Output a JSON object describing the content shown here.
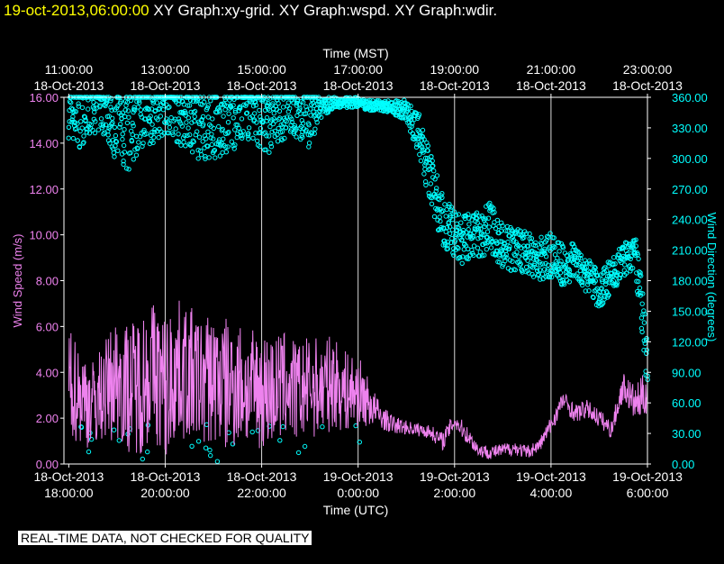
{
  "header": {
    "date": "19-oct-2013,06:00:00",
    "graphs": "XY Graph:xy-grid.  XY Graph:wspd.  XY Graph:wdir."
  },
  "notice": "REAL-TIME DATA, NOT CHECKED FOR QUALITY",
  "colors": {
    "speed": "#ee82ee",
    "direction": "#00ffff",
    "axes": "#ffffff",
    "date": "#ffff00"
  },
  "chart_data": {
    "type": "scatter",
    "top_axis": {
      "label": "Time (MST)",
      "ticks": [
        {
          "hour": 18,
          "time": "11:00:00",
          "date": "18-Oct-2013"
        },
        {
          "hour": 20,
          "time": "13:00:00",
          "date": "18-Oct-2013"
        },
        {
          "hour": 22,
          "time": "15:00:00",
          "date": "18-Oct-2013"
        },
        {
          "hour": 24,
          "time": "17:00:00",
          "date": "18-Oct-2013"
        },
        {
          "hour": 26,
          "time": "19:00:00",
          "date": "18-Oct-2013"
        },
        {
          "hour": 28,
          "time": "21:00:00",
          "date": "18-Oct-2013"
        },
        {
          "hour": 30,
          "time": "23:00:00",
          "date": "18-Oct-2013"
        }
      ]
    },
    "bottom_axis": {
      "label": "Time (UTC)",
      "ticks": [
        {
          "hour": 18,
          "date": "18-Oct-2013",
          "time": "18:00:00"
        },
        {
          "hour": 20,
          "date": "18-Oct-2013",
          "time": "20:00:00"
        },
        {
          "hour": 22,
          "date": "18-Oct-2013",
          "time": "22:00:00"
        },
        {
          "hour": 24,
          "date": "19-Oct-2013",
          "time": "0:00:00"
        },
        {
          "hour": 26,
          "date": "19-Oct-2013",
          "time": "2:00:00"
        },
        {
          "hour": 28,
          "date": "19-Oct-2013",
          "time": "4:00:00"
        },
        {
          "hour": 30,
          "date": "19-Oct-2013",
          "time": "6:00:00"
        }
      ]
    },
    "xlim": [
      17.9,
      30.0
    ],
    "left_axis": {
      "label": "Wind Speed (m/s)",
      "ylim": [
        0,
        16
      ],
      "ticks": [
        "0.00",
        "2.00",
        "4.00",
        "6.00",
        "8.00",
        "10.00",
        "12.00",
        "14.00",
        "16.00"
      ]
    },
    "right_axis": {
      "label": "Wind Direction (degrees)",
      "ylim": [
        0,
        360
      ],
      "ticks": [
        "0.00",
        "30.00",
        "60.00",
        "90.00",
        "120.00",
        "150.00",
        "180.00",
        "210.00",
        "240.00",
        "270.00",
        "300.00",
        "330.00",
        "360.00"
      ]
    },
    "series": [
      {
        "name": "wspd",
        "axis": "left",
        "style": "line",
        "x": [
          18.0,
          18.25,
          18.5,
          18.75,
          19.0,
          19.25,
          19.5,
          19.75,
          20.0,
          20.25,
          20.5,
          20.75,
          21.0,
          21.25,
          21.5,
          21.75,
          22.0,
          22.25,
          22.5,
          22.75,
          23.0,
          23.25,
          23.5,
          23.75,
          24.0,
          24.25,
          24.5,
          24.75,
          25.0,
          25.25,
          25.5,
          25.75,
          26.0,
          26.25,
          26.5,
          26.75,
          27.0,
          27.25,
          27.5,
          27.75,
          28.0,
          28.25,
          28.5,
          28.75,
          29.0,
          29.25,
          29.5,
          29.75,
          30.0
        ],
        "y": [
          3.5,
          3.0,
          2.6,
          3.2,
          3.8,
          3.3,
          3.6,
          4.2,
          3.2,
          4.2,
          3.9,
          3.6,
          3.8,
          3.4,
          3.6,
          3.2,
          3.3,
          3.2,
          3.5,
          3.1,
          3.4,
          3.3,
          3.6,
          3.1,
          3.2,
          2.6,
          2.0,
          1.7,
          1.6,
          1.5,
          1.4,
          1.0,
          1.9,
          1.3,
          0.6,
          0.5,
          0.6,
          0.7,
          0.5,
          0.8,
          1.7,
          2.8,
          2.2,
          2.4,
          2.0,
          1.5,
          3.4,
          2.6,
          3.2
        ],
        "spread": [
          2.4,
          2.2,
          2.0,
          2.2,
          2.8,
          2.8,
          3.2,
          3.0,
          3.4,
          3.0,
          3.0,
          2.8,
          3.0,
          3.0,
          2.8,
          2.6,
          2.6,
          2.5,
          2.4,
          2.2,
          2.2,
          2.2,
          2.0,
          1.8,
          1.6,
          1.0,
          0.5,
          0.4,
          0.3,
          0.3,
          0.3,
          0.4,
          0.4,
          0.4,
          0.3,
          0.3,
          0.3,
          0.3,
          0.3,
          0.3,
          0.4,
          0.4,
          0.4,
          0.4,
          0.4,
          0.4,
          0.6,
          0.8,
          1.0
        ]
      },
      {
        "name": "wdir",
        "axis": "right",
        "style": "circles",
        "x": [
          18.0,
          18.25,
          18.5,
          18.75,
          19.0,
          19.25,
          19.5,
          19.75,
          20.0,
          20.25,
          20.5,
          20.75,
          21.0,
          21.25,
          21.5,
          21.75,
          22.0,
          22.25,
          22.5,
          22.75,
          23.0,
          23.25,
          23.5,
          23.75,
          24.0,
          24.25,
          24.5,
          24.75,
          25.0,
          25.25,
          25.5,
          25.75,
          26.0,
          26.25,
          26.5,
          26.75,
          27.0,
          27.25,
          27.5,
          27.75,
          28.0,
          28.25,
          28.5,
          28.75,
          29.0,
          29.25,
          29.5,
          29.75,
          30.0
        ],
        "y": [
          345,
          345,
          350,
          348,
          335,
          330,
          345,
          345,
          350,
          345,
          340,
          332,
          335,
          335,
          340,
          345,
          340,
          335,
          345,
          345,
          340,
          350,
          355,
          355,
          355,
          352,
          352,
          350,
          348,
          325,
          280,
          240,
          225,
          220,
          225,
          232,
          215,
          210,
          208,
          200,
          205,
          195,
          200,
          185,
          170,
          185,
          198,
          205,
          100
        ],
        "spread": [
          25,
          35,
          25,
          25,
          40,
          45,
          35,
          30,
          25,
          30,
          35,
          35,
          35,
          35,
          30,
          25,
          30,
          35,
          25,
          25,
          30,
          10,
          5,
          5,
          5,
          5,
          5,
          8,
          10,
          20,
          25,
          25,
          25,
          25,
          22,
          25,
          22,
          22,
          20,
          22,
          22,
          20,
          18,
          18,
          18,
          18,
          18,
          20,
          40
        ]
      }
    ]
  }
}
